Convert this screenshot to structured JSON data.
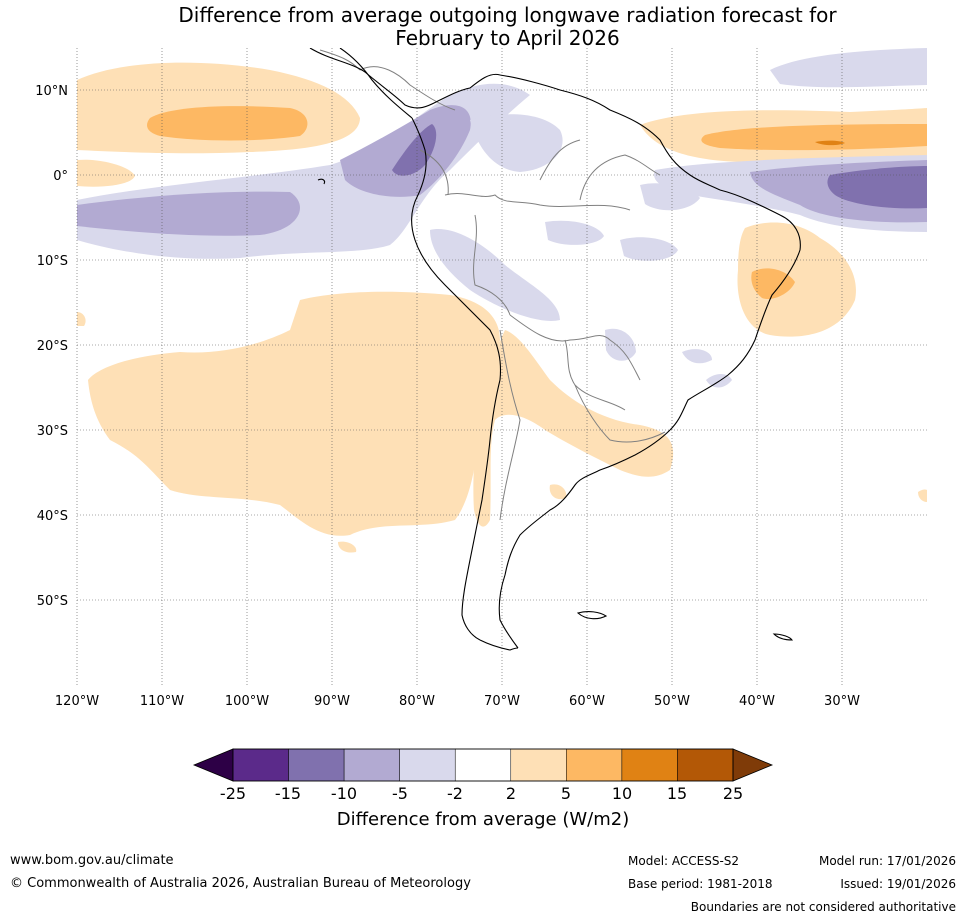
{
  "title": {
    "line1": "Difference from average outgoing longwave radiation forecast for",
    "line2": "February to April 2026"
  },
  "map": {
    "lat_labels": [
      "10°N",
      "0°",
      "10°S",
      "20°S",
      "30°S",
      "40°S",
      "50°S"
    ],
    "lon_labels": [
      "120°W",
      "110°W",
      "100°W",
      "90°W",
      "80°W",
      "70°W",
      "60°W",
      "50°W",
      "40°W",
      "30°W"
    ]
  },
  "colorbar": {
    "ticks": [
      "-25",
      "-15",
      "-10",
      "-5",
      "-2",
      "2",
      "5",
      "10",
      "15",
      "25"
    ],
    "colors": [
      "#5b2a8a",
      "#8071ae",
      "#b2aad2",
      "#d9d9ec",
      "#ffffff",
      "#fee0b6",
      "#fdb863",
      "#e08214",
      "#b35806"
    ],
    "low_color": "#2d0046",
    "high_color": "#7f3b08",
    "label": "Difference from average (W/m2)"
  },
  "footer": {
    "website": "www.bom.gov.au/climate",
    "copyright": "© Commonwealth of Australia 2026, Australian Bureau of Meteorology",
    "model": "Model: ACCESS-S2",
    "base_period": "Base period: 1981-2018",
    "model_run": "Model run: 17/01/2026",
    "issued": "Issued: 19/01/2026",
    "disclaimer": "Boundaries are not considered authoritative"
  }
}
